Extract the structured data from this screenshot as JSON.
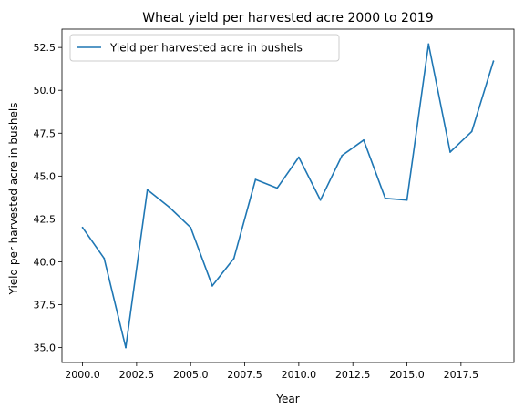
{
  "chart_data": {
    "type": "line",
    "title": "Wheat yield per harvested acre 2000 to 2019",
    "xlabel": "Year",
    "ylabel": "Yield per harvested acre in bushels",
    "xlim": [
      1999.05,
      2019.95
    ],
    "ylim": [
      34.13,
      53.57
    ],
    "x_ticks": [
      2000.0,
      2002.5,
      2005.0,
      2007.5,
      2010.0,
      2012.5,
      2015.0,
      2017.5
    ],
    "x_tick_labels": [
      "2000.0",
      "2002.5",
      "2005.0",
      "2007.5",
      "2010.0",
      "2012.5",
      "2015.0",
      "2017.5"
    ],
    "y_ticks": [
      35.0,
      37.5,
      40.0,
      42.5,
      45.0,
      47.5,
      50.0,
      52.5
    ],
    "y_tick_labels": [
      "35.0",
      "37.5",
      "40.0",
      "42.5",
      "45.0",
      "47.5",
      "50.0",
      "52.5"
    ],
    "grid": false,
    "legend_position": "top-left",
    "series": [
      {
        "name": "Yield per harvested acre in bushels",
        "color": "#1f77b4",
        "x": [
          2000,
          2001,
          2002,
          2003,
          2004,
          2005,
          2006,
          2007,
          2008,
          2009,
          2010,
          2011,
          2012,
          2013,
          2014,
          2015,
          2016,
          2017,
          2018,
          2019
        ],
        "y": [
          42.0,
          40.2,
          35.0,
          44.2,
          43.2,
          42.0,
          38.6,
          40.2,
          44.8,
          44.3,
          46.1,
          43.6,
          46.2,
          47.1,
          43.7,
          43.6,
          52.7,
          46.4,
          47.6,
          51.7
        ]
      }
    ]
  }
}
